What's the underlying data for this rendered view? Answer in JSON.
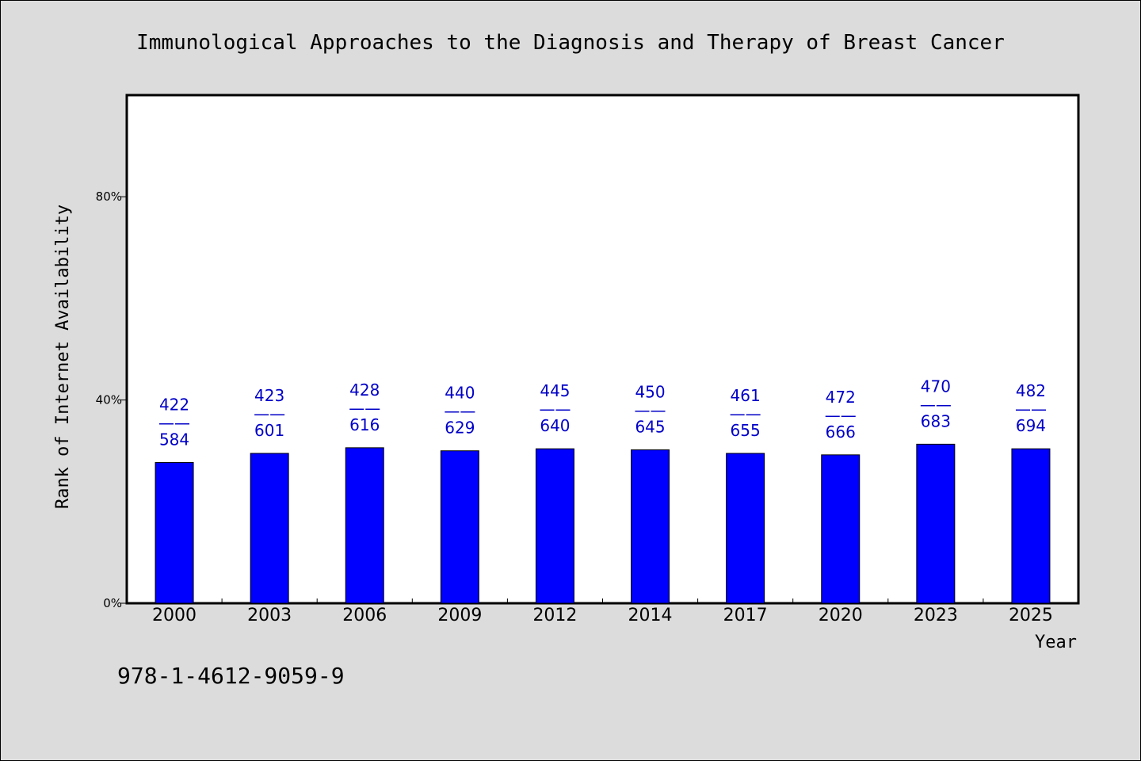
{
  "chart_data": {
    "type": "bar",
    "title": "Immunological Approaches to the Diagnosis and Therapy of Breast Cancer",
    "xlabel": "Year",
    "ylabel": "Rank of Internet Availability",
    "categories": [
      "2000",
      "2003",
      "2006",
      "2009",
      "2012",
      "2014",
      "2017",
      "2020",
      "2023",
      "2025"
    ],
    "values": [
      27.7,
      29.5,
      30.6,
      30.0,
      30.4,
      30.2,
      29.5,
      29.2,
      31.3,
      30.4
    ],
    "value_unit": "%",
    "ylim": [
      0,
      100
    ],
    "yticks": [
      0,
      40,
      80
    ],
    "ytick_labels": [
      "0%",
      "40%",
      "80%"
    ],
    "bar_labels": [
      {
        "top": "422",
        "sep": "——",
        "bottom": "584"
      },
      {
        "top": "423",
        "sep": "——",
        "bottom": "601"
      },
      {
        "top": "428",
        "sep": "——",
        "bottom": "616"
      },
      {
        "top": "440",
        "sep": "——",
        "bottom": "629"
      },
      {
        "top": "445",
        "sep": "——",
        "bottom": "640"
      },
      {
        "top": "450",
        "sep": "——",
        "bottom": "645"
      },
      {
        "top": "461",
        "sep": "——",
        "bottom": "655"
      },
      {
        "top": "472",
        "sep": "——",
        "bottom": "666"
      },
      {
        "top": "470",
        "sep": "——",
        "bottom": "683"
      },
      {
        "top": "482",
        "sep": "——",
        "bottom": "694"
      }
    ],
    "grid": false,
    "legend": "none",
    "colors": {
      "bar": "#0000ff",
      "bar_label": "#0000c8",
      "background": "#dcdcdc",
      "plot_bg": "#ffffff"
    }
  },
  "footer": {
    "isbn": "978-1-4612-9059-9"
  }
}
